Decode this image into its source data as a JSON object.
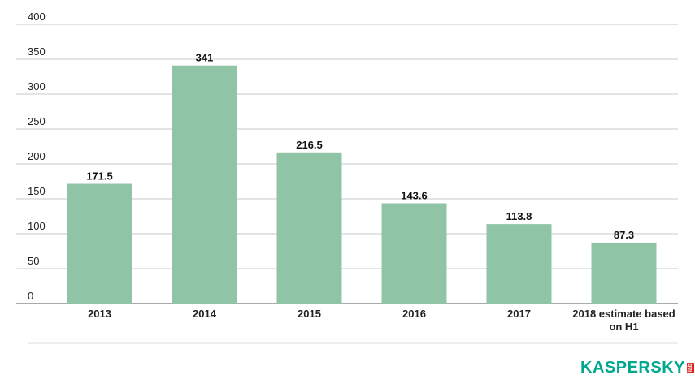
{
  "chart_data": {
    "type": "bar",
    "categories": [
      "2013",
      "2014",
      "2015",
      "2016",
      "2017",
      "2018 estimate based on H1"
    ],
    "category_lines": [
      [
        "2013"
      ],
      [
        "2014"
      ],
      [
        "2015"
      ],
      [
        "2016"
      ],
      [
        "2017"
      ],
      [
        "2018 estimate based",
        "on H1"
      ]
    ],
    "values": [
      171.5,
      341,
      216.5,
      143.6,
      113.8,
      87.3
    ],
    "value_labels": [
      "171.5",
      "341",
      "216.5",
      "143.6",
      "113.8",
      "87.3"
    ],
    "yticks": [
      0,
      50,
      100,
      150,
      200,
      250,
      300,
      350,
      400
    ],
    "ylim": [
      0,
      400
    ],
    "grid": true,
    "bar_color": "#90c4a7",
    "title": "",
    "xlabel": "",
    "ylabel": ""
  },
  "brand": {
    "name": "KASPERSKY",
    "sub": "lab",
    "color": "#00A88E",
    "sub_bg": "#d6281f"
  }
}
